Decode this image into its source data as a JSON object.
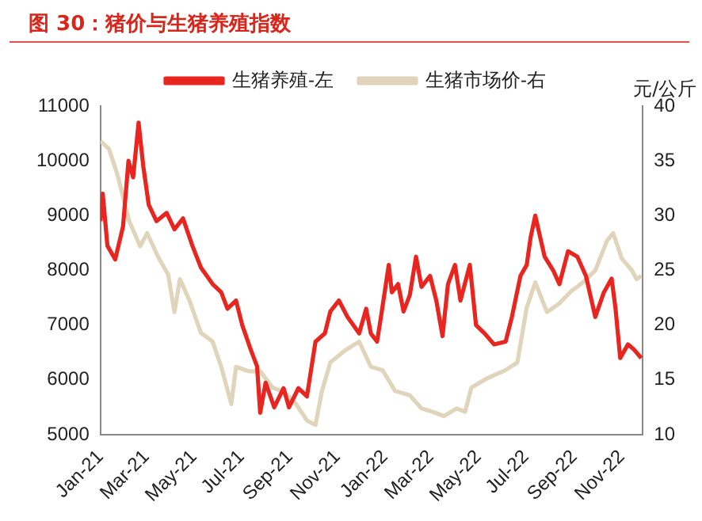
{
  "chart_data": {
    "type": "line",
    "title": "图 30：猪价与生猪养殖指数",
    "y2label": "元/公斤",
    "series": [
      {
        "name": "生猪养殖-左",
        "color": "#e8251f",
        "x": [
          "2021-01-01",
          "2021-01-04",
          "2021-01-10",
          "2021-01-20",
          "2021-01-30",
          "2021-02-06",
          "2021-02-12",
          "2021-02-19",
          "2021-02-25",
          "2021-03-04",
          "2021-03-14",
          "2021-03-27",
          "2021-04-06",
          "2021-04-17",
          "2021-04-29",
          "2021-05-10",
          "2021-05-25",
          "2021-06-05",
          "2021-06-13",
          "2021-06-24",
          "2021-07-02",
          "2021-07-13",
          "2021-07-21",
          "2021-07-25",
          "2021-08-01",
          "2021-08-12",
          "2021-08-24",
          "2021-08-31",
          "2021-09-12",
          "2021-09-23",
          "2021-10-04",
          "2021-10-16",
          "2021-10-23",
          "2021-11-03",
          "2021-11-14",
          "2021-11-29",
          "2021-12-08",
          "2021-12-14",
          "2021-12-22",
          "2021-12-27",
          "2022-01-06",
          "2022-01-10",
          "2022-01-18",
          "2022-01-25",
          "2022-02-02",
          "2022-02-10",
          "2022-02-17",
          "2022-02-28",
          "2022-03-08",
          "2022-03-16",
          "2022-03-23",
          "2022-04-01",
          "2022-04-08",
          "2022-04-20",
          "2022-04-28",
          "2022-05-09",
          "2022-05-21",
          "2022-06-05",
          "2022-06-13",
          "2022-06-24",
          "2022-07-02",
          "2022-07-07",
          "2022-07-13",
          "2022-07-25",
          "2022-08-05",
          "2022-08-13",
          "2022-08-24",
          "2022-09-05",
          "2022-09-16",
          "2022-09-28",
          "2022-10-09",
          "2022-10-19",
          "2022-10-24",
          "2022-10-30",
          "2022-11-09",
          "2022-11-17",
          "2022-11-26"
        ],
        "values": [
          8900,
          9400,
          8450,
          8200,
          8800,
          10000,
          9700,
          10700,
          9900,
          9200,
          8900,
          9050,
          8750,
          8950,
          8450,
          8050,
          7750,
          7600,
          7300,
          7450,
          7000,
          6550,
          6250,
          5400,
          5950,
          5500,
          5850,
          5500,
          5850,
          5700,
          6700,
          6850,
          7250,
          7450,
          7150,
          6850,
          7300,
          6850,
          6700,
          7150,
          8100,
          7600,
          7750,
          7250,
          7550,
          8250,
          7700,
          7900,
          7450,
          6800,
          7750,
          8100,
          7450,
          8100,
          7000,
          6850,
          6650,
          6700,
          7150,
          7900,
          8100,
          8600,
          9000,
          8250,
          8000,
          7750,
          8350,
          8250,
          7900,
          7150,
          7600,
          7850,
          7300,
          6400,
          6650,
          6550,
          6400
        ]
      },
      {
        "name": "生猪市场价-右",
        "color": "#e0d4bb",
        "axis": "y2",
        "x": [
          "2021-01-01",
          "2021-01-12",
          "2021-01-23",
          "2021-02-07",
          "2021-02-21",
          "2021-03-02",
          "2021-03-17",
          "2021-03-29",
          "2021-04-06",
          "2021-04-13",
          "2021-04-25",
          "2021-05-10",
          "2021-05-25",
          "2021-06-05",
          "2021-06-18",
          "2021-06-24",
          "2021-07-10",
          "2021-07-25",
          "2021-08-10",
          "2021-08-25",
          "2021-09-09",
          "2021-09-23",
          "2021-10-04",
          "2021-10-12",
          "2021-10-23",
          "2021-11-11",
          "2021-11-29",
          "2021-12-14",
          "2021-12-29",
          "2022-01-14",
          "2022-02-02",
          "2022-02-17",
          "2022-03-03",
          "2022-03-18",
          "2022-04-03",
          "2022-04-14",
          "2022-04-22",
          "2022-05-11",
          "2022-06-05",
          "2022-06-20",
          "2022-07-02",
          "2022-07-13",
          "2022-07-28",
          "2022-08-13",
          "2022-08-28",
          "2022-09-12",
          "2022-09-28",
          "2022-10-13",
          "2022-10-21",
          "2022-11-01",
          "2022-11-14",
          "2022-11-20",
          "2022-11-26"
        ],
        "values": [
          36.8,
          36.1,
          33.7,
          29.5,
          27.2,
          28.4,
          26.1,
          24.6,
          21.2,
          24.2,
          22.3,
          19.3,
          18.5,
          16.2,
          12.8,
          16.2,
          15.8,
          15.8,
          14.3,
          13.9,
          12.8,
          11.3,
          10.9,
          13.9,
          16.6,
          17.7,
          18.5,
          16.2,
          15.9,
          14.0,
          13.6,
          12.4,
          12.1,
          11.7,
          12.4,
          12.1,
          14.3,
          15.1,
          15.9,
          16.6,
          21.6,
          23.9,
          21.2,
          22.0,
          23.1,
          23.9,
          25.0,
          27.7,
          28.4,
          26.1,
          25.0,
          24.2,
          24.5
        ]
      }
    ],
    "xlim": [
      "2021-01-01",
      "2022-11-28"
    ],
    "xticks": [
      {
        "value": "2021-01-01",
        "label": "Jan-21"
      },
      {
        "value": "2021-03-01",
        "label": "Mar-21"
      },
      {
        "value": "2021-05-01",
        "label": "May-21"
      },
      {
        "value": "2021-07-01",
        "label": "Jul-21"
      },
      {
        "value": "2021-09-01",
        "label": "Sep-21"
      },
      {
        "value": "2021-11-01",
        "label": "Nov-21"
      },
      {
        "value": "2022-01-01",
        "label": "Jan-22"
      },
      {
        "value": "2022-03-01",
        "label": "Mar-22"
      },
      {
        "value": "2022-05-01",
        "label": "May-22"
      },
      {
        "value": "2022-07-01",
        "label": "Jul-22"
      },
      {
        "value": "2022-09-01",
        "label": "Sep-22"
      },
      {
        "value": "2022-11-01",
        "label": "Nov-22"
      }
    ],
    "ylim": [
      5000,
      11000
    ],
    "yticks": [
      5000,
      6000,
      7000,
      8000,
      9000,
      10000,
      11000
    ],
    "y2lim": [
      10,
      40
    ],
    "y2ticks": [
      10,
      15,
      20,
      25,
      30,
      35,
      40
    ],
    "grid": false,
    "legend": "top",
    "marker": "none",
    "line_style": "solid"
  }
}
